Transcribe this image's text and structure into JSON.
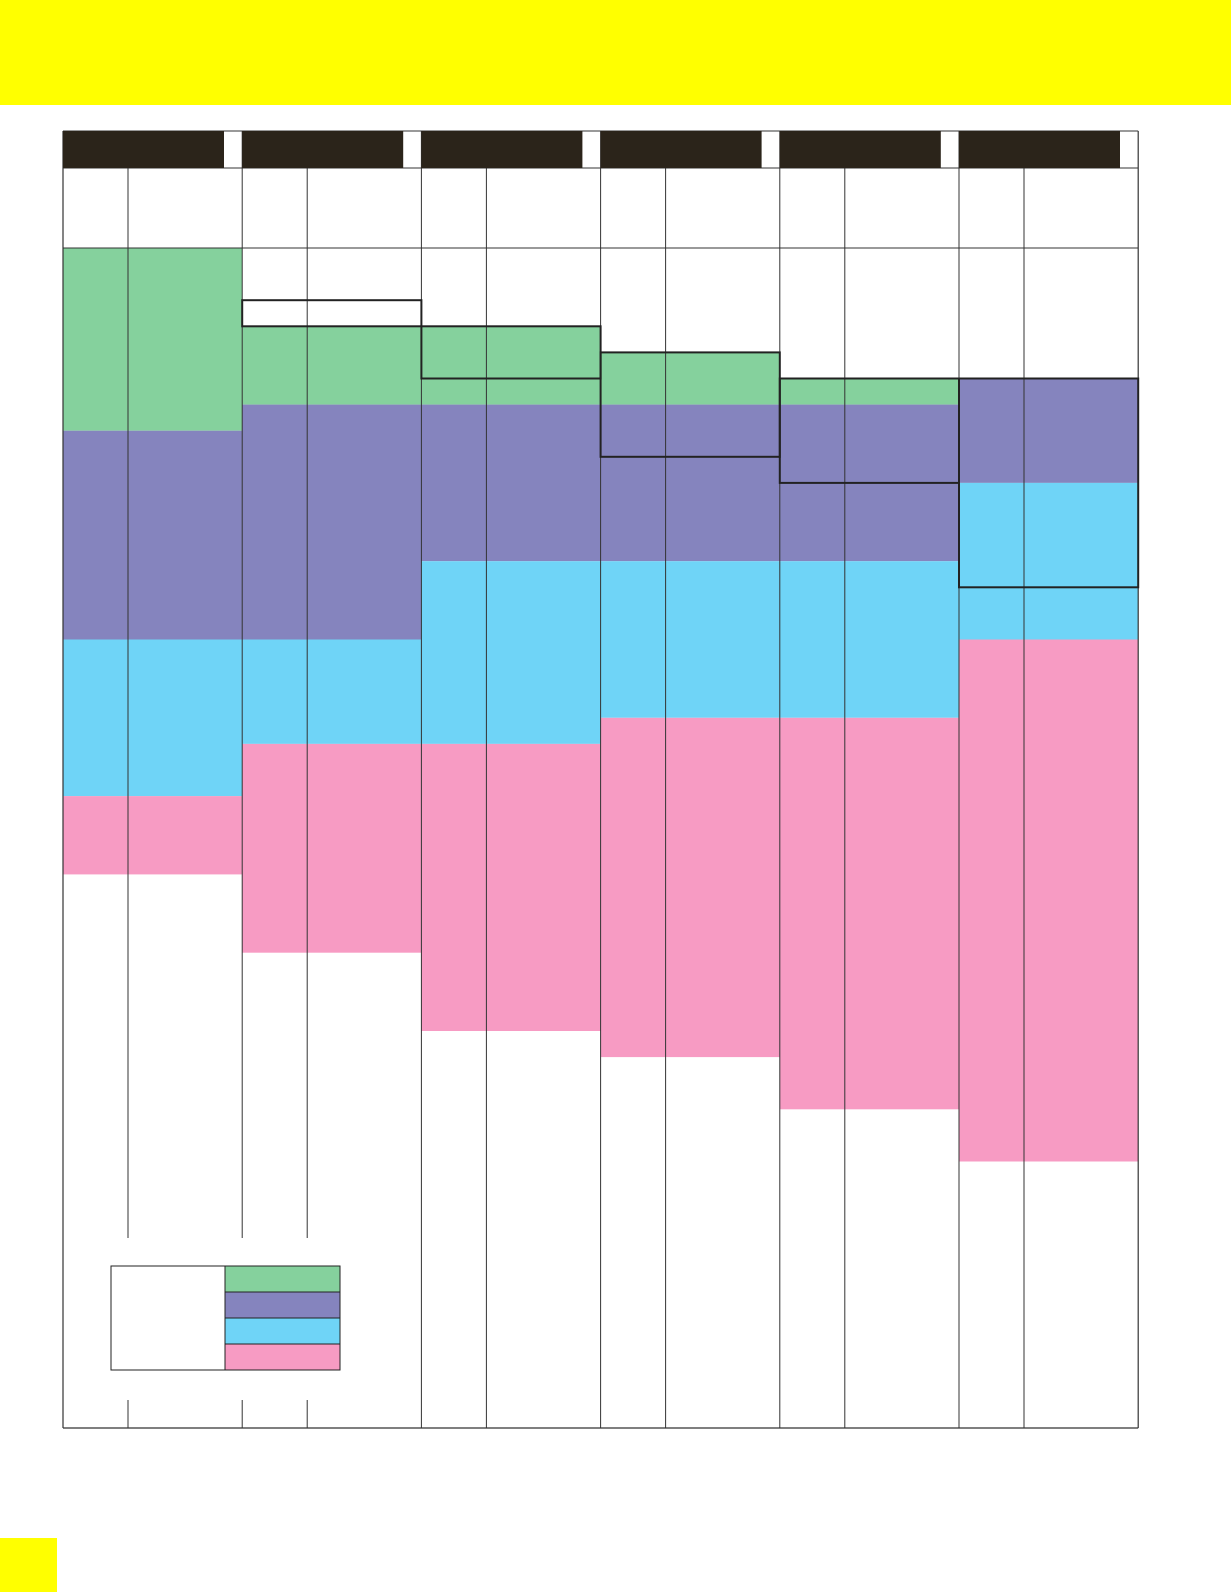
{
  "colors": {
    "banner": "#ffff00",
    "header_bar": "#2b241a",
    "grid_line": "#333333",
    "bands": [
      "#85d19d",
      "#8584be",
      "#6fd4f7",
      "#f79bc3"
    ]
  },
  "chart_data": {
    "type": "table",
    "title": "",
    "columns": 6,
    "subcolumns_per_column": 2,
    "row_units": 39,
    "row_unit_note_visible": false,
    "band_colors": [
      "#85d19d",
      "#8584be",
      "#6fd4f7",
      "#f79bc3"
    ],
    "columns_data": [
      {
        "bands": [
          [
            0,
            7
          ],
          [
            7,
            15
          ],
          [
            15,
            21
          ],
          [
            21,
            24
          ]
        ],
        "boxes": []
      },
      {
        "bands": [
          [
            3,
            6
          ],
          [
            6,
            15
          ],
          [
            15,
            19
          ],
          [
            19,
            27
          ]
        ],
        "boxes": [
          [
            2,
            3
          ]
        ]
      },
      {
        "bands": [
          [
            3,
            6
          ],
          [
            6,
            12
          ],
          [
            12,
            19
          ],
          [
            19,
            30
          ]
        ],
        "boxes": [
          [
            3,
            5
          ]
        ]
      },
      {
        "bands": [
          [
            4,
            6
          ],
          [
            6,
            12
          ],
          [
            12,
            18
          ],
          [
            18,
            31
          ]
        ],
        "boxes": [
          [
            4,
            8
          ]
        ]
      },
      {
        "bands": [
          [
            5,
            6
          ],
          [
            6,
            12
          ],
          [
            12,
            18
          ],
          [
            18,
            33
          ]
        ],
        "boxes": [
          [
            5,
            9
          ]
        ]
      },
      {
        "bands": [
          [
            null,
            null
          ],
          [
            5,
            9
          ],
          [
            9,
            15
          ],
          [
            15,
            35
          ]
        ],
        "boxes": [
          [
            5,
            13
          ]
        ]
      }
    ],
    "legend": {
      "labels": [
        "",
        "",
        "",
        ""
      ],
      "colors": [
        "#85d19d",
        "#8584be",
        "#6fd4f7",
        "#f79bc3"
      ]
    }
  }
}
